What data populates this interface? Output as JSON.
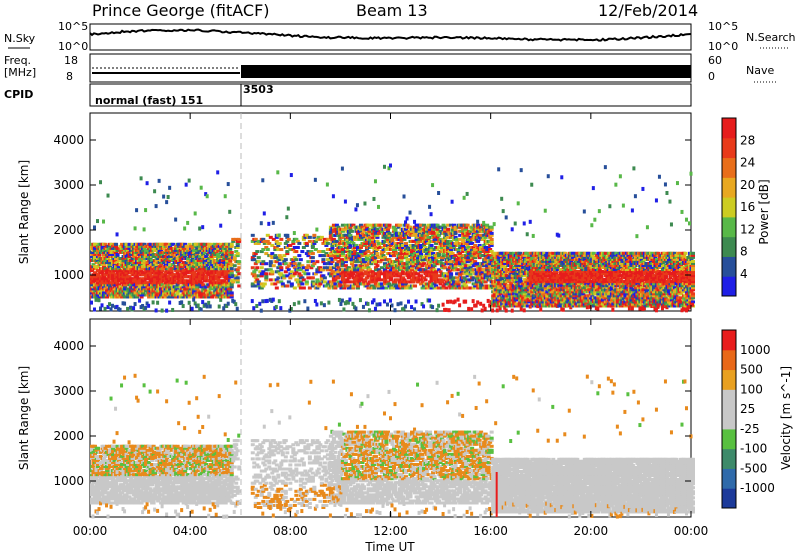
{
  "header": {
    "station": "Prince George (fitACF)",
    "beam": "Beam 13",
    "date": "12/Feb/2014"
  },
  "noise_panel": {
    "left_label": "N.Sky",
    "left_ticks": [
      "10^5",
      "10^0"
    ],
    "right_label": "N.Search",
    "right_ticks": [
      "10^5",
      "10^0"
    ]
  },
  "freq_panel": {
    "left_label_1": "Freq.",
    "left_label_2": "[MHz]",
    "left_ticks": [
      "18",
      "8"
    ],
    "right_label": "Nave",
    "right_ticks": [
      "60",
      "0"
    ]
  },
  "cpid_panel": {
    "label": "CPID",
    "segment_1": "normal (fast) 151",
    "segment_2": "3503"
  },
  "colors": {
    "power_scale": [
      "#1f1fe6",
      "#274f9a",
      "#3d8a50",
      "#58b848",
      "#cccc22",
      "#e8a820",
      "#e86e1a",
      "#e83a1a",
      "#e61c1c"
    ],
    "velocity_scale": [
      "#1c3a9a",
      "#2f6aaa",
      "#3d8a6a",
      "#58c040",
      "#c8c8c8",
      "#c8c8c8",
      "#e8a020",
      "#e86818",
      "#e81c1c"
    ]
  },
  "chart_data": [
    {
      "type": "heatmap",
      "title": "Power",
      "ylabel": "Slant Range [km]",
      "ylim": [
        200,
        4600
      ],
      "yticks": [
        "1000",
        "2000",
        "3000",
        "4000"
      ],
      "xlim": [
        0,
        24
      ],
      "xticks": [
        "00:00",
        "04:00",
        "08:00",
        "12:00",
        "16:00",
        "20:00",
        "00:00"
      ],
      "colorbar_label": "Power [dB]",
      "colorbar_ticks": [
        "28",
        "24",
        "20",
        "16",
        "12",
        "8",
        "4"
      ]
    },
    {
      "type": "heatmap",
      "title": "Velocity",
      "ylabel": "Slant Range [km]",
      "ylim": [
        200,
        4600
      ],
      "yticks": [
        "1000",
        "2000",
        "3000",
        "4000"
      ],
      "xlim": [
        0,
        24
      ],
      "xticks": [
        "00:00",
        "04:00",
        "08:00",
        "12:00",
        "16:00",
        "20:00",
        "00:00"
      ],
      "xlabel": "Time UT",
      "colorbar_label": "Velocity [m s^-1]",
      "colorbar_ticks": [
        "1000",
        "500",
        "100",
        "25",
        "-25",
        "-100",
        "-500",
        "-1000"
      ]
    }
  ]
}
